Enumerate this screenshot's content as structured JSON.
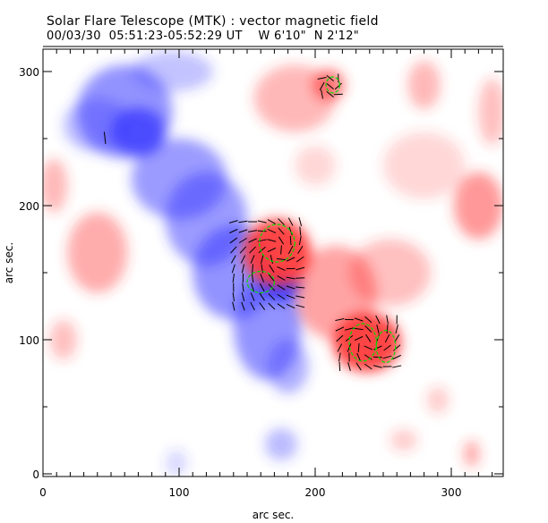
{
  "header": {
    "title": "Solar Flare Telescope (MTK) : vector magnetic field",
    "subtitle": "00/03/30  05:51:23-05:52:29 UT    W 6'10\"  N 2'12\""
  },
  "chart_data": {
    "type": "heatmap",
    "title": "Solar Flare Telescope (MTK) : vector magnetic field",
    "xlabel": "arc sec.",
    "ylabel": "arc sec.",
    "xlim": [
      0,
      338
    ],
    "ylim": [
      0,
      317
    ],
    "xticks": [
      "0",
      "100",
      "200",
      "300"
    ],
    "yticks": [
      "0",
      "100",
      "200",
      "300"
    ],
    "colors": {
      "positive": "#ff3030",
      "negative": "#3a3aff",
      "contour": "#00dd00",
      "vector": "#000000"
    },
    "negative_regions": [
      {
        "x": 60,
        "y": 270,
        "rx": 35,
        "ry": 35,
        "a": 0.55
      },
      {
        "x": 70,
        "y": 255,
        "rx": 20,
        "ry": 18,
        "a": 0.8
      },
      {
        "x": 100,
        "y": 220,
        "rx": 35,
        "ry": 30,
        "a": 0.5
      },
      {
        "x": 120,
        "y": 190,
        "rx": 30,
        "ry": 35,
        "a": 0.5
      },
      {
        "x": 140,
        "y": 150,
        "rx": 30,
        "ry": 35,
        "a": 0.55
      },
      {
        "x": 165,
        "y": 110,
        "rx": 25,
        "ry": 40,
        "a": 0.55
      },
      {
        "x": 175,
        "y": 140,
        "rx": 15,
        "ry": 12,
        "a": 0.9
      },
      {
        "x": 180,
        "y": 80,
        "rx": 15,
        "ry": 20,
        "a": 0.4
      },
      {
        "x": 40,
        "y": 260,
        "rx": 25,
        "ry": 20,
        "a": 0.35
      },
      {
        "x": 95,
        "y": 300,
        "rx": 30,
        "ry": 15,
        "a": 0.3
      },
      {
        "x": 175,
        "y": 22,
        "rx": 12,
        "ry": 12,
        "a": 0.35
      },
      {
        "x": 98,
        "y": 8,
        "rx": 8,
        "ry": 10,
        "a": 0.2
      }
    ],
    "positive_regions": [
      {
        "x": 172,
        "y": 165,
        "rx": 25,
        "ry": 25,
        "a": 0.9
      },
      {
        "x": 238,
        "y": 98,
        "rx": 25,
        "ry": 22,
        "a": 0.9
      },
      {
        "x": 215,
        "y": 135,
        "rx": 30,
        "ry": 35,
        "a": 0.45
      },
      {
        "x": 255,
        "y": 150,
        "rx": 30,
        "ry": 25,
        "a": 0.3
      },
      {
        "x": 320,
        "y": 200,
        "rx": 18,
        "ry": 25,
        "a": 0.5
      },
      {
        "x": 280,
        "y": 230,
        "rx": 30,
        "ry": 25,
        "a": 0.2
      },
      {
        "x": 40,
        "y": 165,
        "rx": 22,
        "ry": 30,
        "a": 0.4
      },
      {
        "x": 8,
        "y": 215,
        "rx": 10,
        "ry": 20,
        "a": 0.35
      },
      {
        "x": 185,
        "y": 280,
        "rx": 30,
        "ry": 25,
        "a": 0.35
      },
      {
        "x": 210,
        "y": 290,
        "rx": 12,
        "ry": 12,
        "a": 0.6
      },
      {
        "x": 280,
        "y": 290,
        "rx": 12,
        "ry": 18,
        "a": 0.35
      },
      {
        "x": 330,
        "y": 270,
        "rx": 10,
        "ry": 25,
        "a": 0.3
      },
      {
        "x": 200,
        "y": 230,
        "rx": 15,
        "ry": 15,
        "a": 0.2
      },
      {
        "x": 290,
        "y": 55,
        "rx": 8,
        "ry": 10,
        "a": 0.25
      },
      {
        "x": 315,
        "y": 15,
        "rx": 6,
        "ry": 10,
        "a": 0.4
      },
      {
        "x": 265,
        "y": 25,
        "rx": 10,
        "ry": 8,
        "a": 0.25
      },
      {
        "x": 15,
        "y": 100,
        "rx": 10,
        "ry": 15,
        "a": 0.3
      }
    ],
    "contours": [
      {
        "x": 172,
        "y": 172,
        "rx": 13,
        "ry": 14
      },
      {
        "x": 160,
        "y": 143,
        "rx": 10,
        "ry": 8
      },
      {
        "x": 235,
        "y": 98,
        "rx": 10,
        "ry": 14
      },
      {
        "x": 252,
        "y": 95,
        "rx": 7,
        "ry": 12
      },
      {
        "x": 213,
        "y": 290,
        "rx": 5,
        "ry": 6
      }
    ],
    "vector_fields": [
      {
        "x0": 140,
        "x1": 195,
        "y0": 125,
        "y1": 192,
        "step": 7,
        "cx": 172,
        "cy": 165
      },
      {
        "x0": 218,
        "x1": 262,
        "y0": 80,
        "y1": 118,
        "step": 7,
        "cx": 238,
        "cy": 98
      },
      {
        "x0": 205,
        "x1": 218,
        "y0": 283,
        "y1": 297,
        "step": 6,
        "cx": 211,
        "cy": 290
      }
    ]
  }
}
